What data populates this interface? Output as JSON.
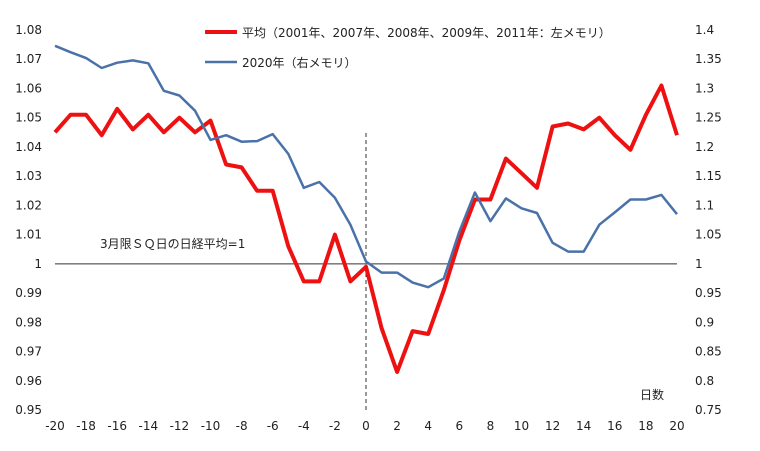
{
  "chart_data": {
    "type": "line",
    "title": "",
    "xlabel": "日数",
    "annotation": "3月限ＳＱ日の日経平均=1",
    "x": [
      -20,
      -19,
      -18,
      -17,
      -16,
      -15,
      -14,
      -13,
      -12,
      -11,
      -10,
      -9,
      -8,
      -7,
      -6,
      -5,
      -4,
      -3,
      -2,
      -1,
      0,
      1,
      2,
      3,
      4,
      5,
      6,
      7,
      8,
      9,
      10,
      11,
      12,
      13,
      14,
      15,
      16,
      17,
      18,
      19,
      20
    ],
    "xlim": [
      -20,
      20
    ],
    "x_ticks": [
      -20,
      -18,
      -16,
      -14,
      -12,
      -10,
      -8,
      -6,
      -4,
      -2,
      0,
      2,
      4,
      6,
      8,
      10,
      12,
      14,
      16,
      18,
      20
    ],
    "y_left": {
      "lim": [
        0.95,
        1.08
      ],
      "ticks": [
        "0.95",
        "0.96",
        "0.97",
        "0.98",
        "0.99",
        "1",
        "1.01",
        "1.02",
        "1.03",
        "1.04",
        "1.05",
        "1.06",
        "1.07",
        "1.08"
      ]
    },
    "y_right": {
      "lim": [
        0.75,
        1.4
      ],
      "ticks": [
        "0.75",
        "0.8",
        "0.85",
        "0.9",
        "0.95",
        "1",
        "1.05",
        "1.1",
        "1.15",
        "1.2",
        "1.25",
        "1.3",
        "1.35",
        "1.4"
      ]
    },
    "reference_line": 1,
    "vertical_marker_x": 0,
    "series": [
      {
        "name": "平均（2001年、2007年、2008年、2009年、2011年：左メモリ）",
        "axis": "left",
        "color": "#ee1111",
        "values": [
          1.045,
          1.051,
          1.051,
          1.044,
          1.053,
          1.046,
          1.051,
          1.045,
          1.05,
          1.045,
          1.049,
          1.034,
          1.033,
          1.025,
          1.025,
          1.006,
          0.994,
          0.994,
          1.01,
          0.994,
          0.999,
          0.978,
          0.963,
          0.977,
          0.976,
          0.991,
          1.008,
          1.022,
          1.022,
          1.036,
          1.031,
          1.026,
          1.047,
          1.048,
          1.046,
          1.05,
          1.044,
          1.039,
          1.051,
          1.061,
          1.044
        ]
      },
      {
        "name": "2020年（右メモリ）",
        "axis": "right",
        "color": "#4a72a8",
        "values": [
          1.373,
          1.362,
          1.352,
          1.335,
          1.344,
          1.348,
          1.343,
          1.296,
          1.288,
          1.262,
          1.212,
          1.22,
          1.209,
          1.21,
          1.222,
          1.188,
          1.13,
          1.14,
          1.113,
          1.067,
          1.004,
          0.985,
          0.985,
          0.968,
          0.96,
          0.975,
          1.055,
          1.122,
          1.073,
          1.112,
          1.095,
          1.087,
          1.036,
          1.021,
          1.021,
          1.067,
          1.088,
          1.11,
          1.11,
          1.118,
          1.085
        ]
      }
    ]
  }
}
